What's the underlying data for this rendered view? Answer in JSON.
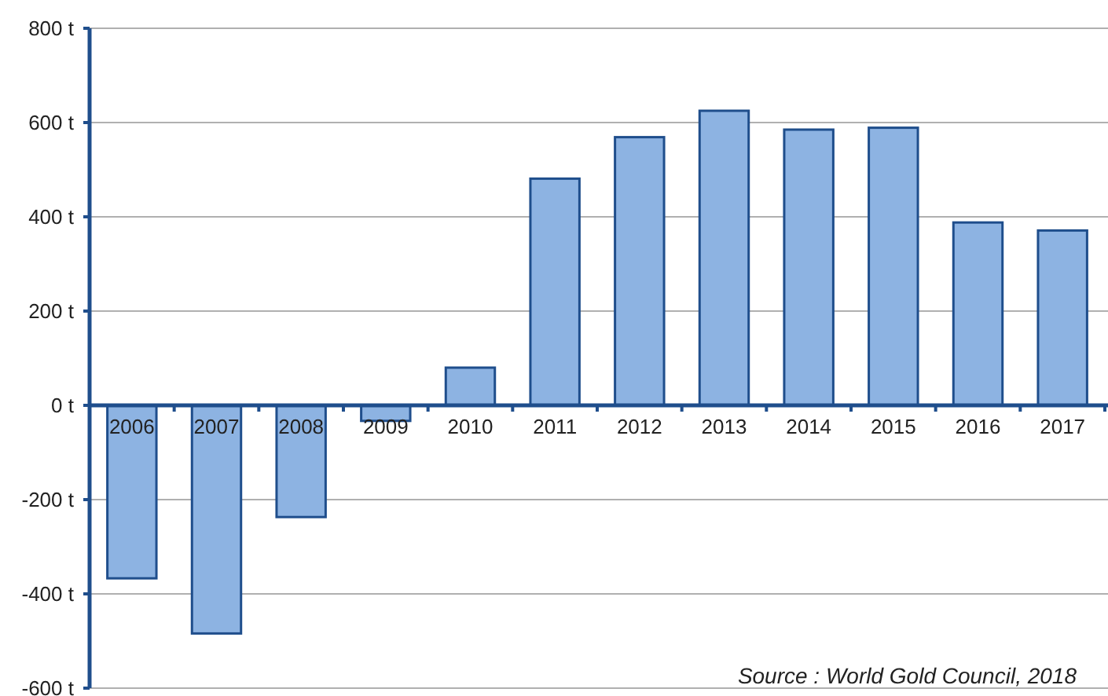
{
  "chart_data": {
    "type": "bar",
    "categories": [
      "2006",
      "2007",
      "2008",
      "2009",
      "2010",
      "2011",
      "2012",
      "2013",
      "2014",
      "2015",
      "2016",
      "2017"
    ],
    "values": [
      -367,
      -484,
      -237,
      -33,
      80,
      481,
      569,
      625,
      585,
      589,
      388,
      371
    ],
    "color": "#8db3e2",
    "ylim": [
      -600,
      800
    ],
    "yticks": [
      {
        "value": -600,
        "label": "-600 t"
      },
      {
        "value": -400,
        "label": "-400 t"
      },
      {
        "value": -200,
        "label": "-200 t"
      },
      {
        "value": 0,
        "label": "0 t"
      },
      {
        "value": 200,
        "label": "200 t"
      },
      {
        "value": 400,
        "label": "400 t"
      },
      {
        "value": 600,
        "label": "600 t"
      },
      {
        "value": 800,
        "label": "800 t"
      }
    ],
    "grid": "y",
    "annotations": [
      "Source : World Gold Council, 2018"
    ]
  }
}
